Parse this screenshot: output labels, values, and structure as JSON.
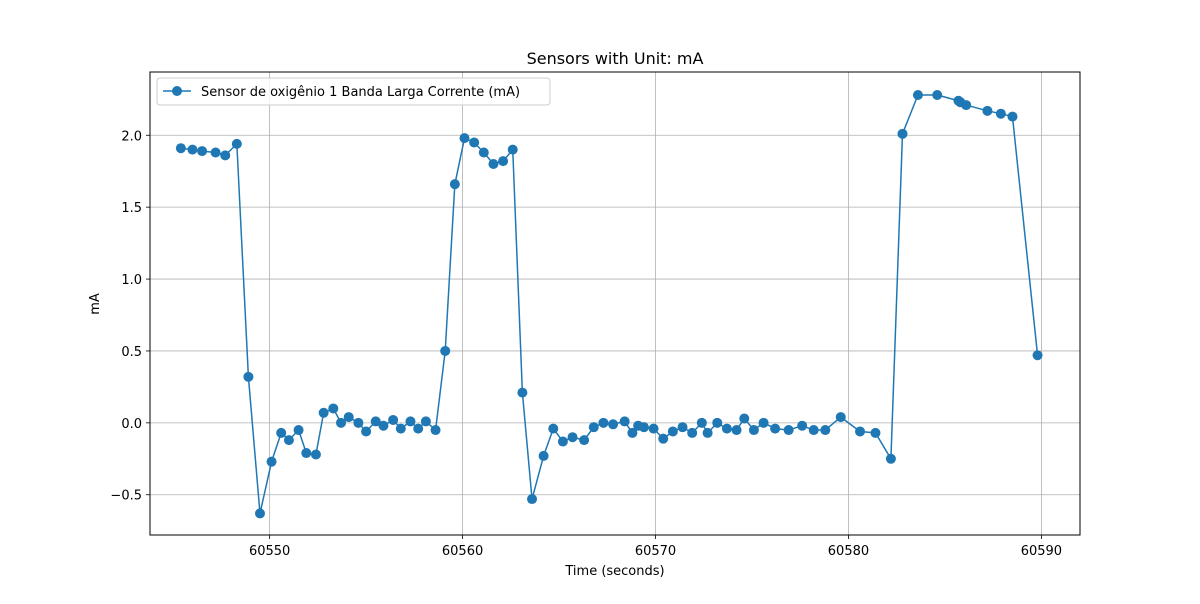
{
  "chart_data": {
    "type": "line",
    "title": "Sensors with Unit: mA",
    "xlabel": "Time (seconds)",
    "ylabel": "mA",
    "xlim": [
      60543.8,
      60592.0
    ],
    "ylim": [
      -0.78,
      2.44
    ],
    "xticks": [
      60550,
      60560,
      60570,
      60580,
      60590
    ],
    "xtick_labels": [
      "60550",
      "60560",
      "60570",
      "60580",
      "60590"
    ],
    "yticks": [
      -0.5,
      0.0,
      0.5,
      1.0,
      1.5,
      2.0
    ],
    "ytick_labels": [
      "−0.5",
      "0.0",
      "0.5",
      "1.0",
      "1.5",
      "2.0"
    ],
    "grid": true,
    "legend_position": "top-left",
    "series": [
      {
        "name": "Sensor de oxigênio 1 Banda Larga Corrente (mA)",
        "color": "#1f77b4",
        "marker": "circle",
        "x": [
          60545.4,
          60546.0,
          60546.5,
          60547.2,
          60547.7,
          60548.3,
          60548.9,
          60549.5,
          60550.1,
          60550.6,
          60551.0,
          60551.5,
          60551.9,
          60552.4,
          60552.8,
          60553.3,
          60553.7,
          60554.1,
          60554.6,
          60555.0,
          60555.5,
          60555.9,
          60556.4,
          60556.8,
          60557.3,
          60557.7,
          60558.1,
          60558.6,
          60559.1,
          60559.6,
          60560.1,
          60560.6,
          60561.1,
          60561.6,
          60562.1,
          60562.6,
          60563.1,
          60563.6,
          60564.2,
          60564.7,
          60565.2,
          60565.7,
          60566.3,
          60566.8,
          60567.3,
          60567.8,
          60568.4,
          60568.8,
          60569.1,
          60569.4,
          60569.9,
          60570.4,
          60570.9,
          60571.4,
          60571.9,
          60572.4,
          60572.7,
          60573.2,
          60573.7,
          60574.2,
          60574.6,
          60575.1,
          60575.6,
          60576.2,
          60576.9,
          60577.6,
          60578.2,
          60578.8,
          60579.6,
          60580.6,
          60581.4,
          60582.2,
          60582.8,
          60583.6,
          60584.6,
          60585.7,
          60585.8,
          60586.1,
          60587.2,
          60587.9,
          60588.5,
          60589.8
        ],
        "y": [
          1.91,
          1.9,
          1.89,
          1.88,
          1.86,
          1.94,
          0.32,
          -0.63,
          -0.27,
          -0.07,
          -0.12,
          -0.05,
          -0.21,
          -0.22,
          0.07,
          0.1,
          0.0,
          0.04,
          0.0,
          -0.06,
          0.01,
          -0.02,
          0.02,
          -0.04,
          0.01,
          -0.04,
          0.01,
          -0.05,
          0.5,
          1.66,
          1.98,
          1.95,
          1.88,
          1.8,
          1.82,
          1.9,
          0.21,
          -0.53,
          -0.23,
          -0.04,
          -0.13,
          -0.1,
          -0.12,
          -0.03,
          0.0,
          -0.01,
          0.01,
          -0.07,
          -0.02,
          -0.03,
          -0.04,
          -0.11,
          -0.06,
          -0.03,
          -0.07,
          0.0,
          -0.07,
          0.0,
          -0.04,
          -0.05,
          0.03,
          -0.05,
          0.0,
          -0.04,
          -0.05,
          -0.02,
          -0.05,
          -0.05,
          0.04,
          -0.06,
          -0.07,
          -0.25,
          2.01,
          2.28,
          2.28,
          2.24,
          2.23,
          2.21,
          2.17,
          2.15,
          2.13,
          0.47
        ]
      }
    ]
  }
}
